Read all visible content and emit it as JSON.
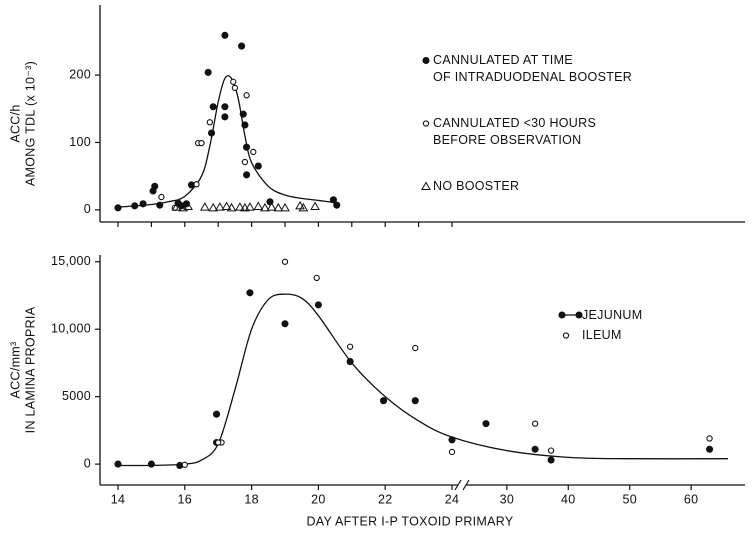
{
  "chart_data": [
    {
      "type": "scatter",
      "ylabel": [
        "ACC/h",
        "AMONG TDL (x 10⁻³)"
      ],
      "xlim": [
        14,
        24
      ],
      "xticks": [
        14,
        15,
        16,
        17,
        18,
        19,
        20,
        21,
        22,
        23,
        24
      ],
      "xtick_labels": false,
      "ylim": [
        -18,
        304
      ],
      "yticks": [
        0,
        100,
        200
      ],
      "series": [
        {
          "name": "CANNULATED AT TIME\nOF INTRADUODENAL BOOSTER",
          "color": "#111",
          "marker": "filled",
          "x": [
            14.0,
            14.5,
            14.75,
            15.05,
            15.1,
            15.25,
            15.8,
            15.9,
            16.05,
            16.2,
            16.7,
            16.8,
            16.85,
            17.2,
            17.2,
            17.2,
            17.7,
            17.75,
            17.8,
            17.85,
            17.85,
            18.2,
            18.55,
            20.45,
            20.55
          ],
          "values": [
            3,
            6,
            9,
            28,
            35,
            7,
            10,
            6,
            9,
            37,
            204,
            114,
            153,
            153,
            259,
            138,
            243,
            142,
            126,
            93,
            52,
            65,
            12,
            15,
            7
          ]
        },
        {
          "name": "CANNULATED <30 HOURS\nBEFORE OBSERVATION",
          "color": "#111",
          "marker": "hollow",
          "x": [
            15.3,
            15.7,
            16.35,
            16.4,
            16.5,
            16.75,
            17.45,
            17.5,
            17.8,
            17.85,
            18.05
          ],
          "values": [
            19,
            3,
            38,
            99,
            99,
            130,
            190,
            181,
            71,
            170,
            86
          ]
        },
        {
          "name": "NO BOOSTER",
          "color": "#111",
          "marker": "triangle",
          "x": [
            15.75,
            15.95,
            16.1,
            16.6,
            16.85,
            17.05,
            17.25,
            17.4,
            17.65,
            17.8,
            17.95,
            18.2,
            18.4,
            18.6,
            18.8,
            19.0,
            19.45,
            19.55,
            19.9
          ],
          "values": [
            4,
            3,
            5,
            4,
            3,
            4,
            5,
            3,
            4,
            3,
            4,
            5,
            3,
            4,
            3,
            3,
            6,
            3,
            5
          ]
        }
      ],
      "fit": {
        "x": [
          14,
          15,
          15.5,
          16,
          16.5,
          16.75,
          17,
          17.2,
          17.4,
          17.6,
          17.8,
          18,
          18.5,
          19,
          19.5,
          20,
          20.6
        ],
        "values": [
          4,
          8,
          12,
          20,
          50,
          95,
          160,
          195,
          195,
          165,
          110,
          70,
          35,
          22,
          17,
          14,
          10
        ]
      }
    },
    {
      "type": "scatter",
      "xlabel": "DAY AFTER I-P TOXOID PRIMARY",
      "ylabel": [
        "ACC/mm³",
        "IN LAMINA PROPRIA"
      ],
      "xlim": [
        14,
        66
      ],
      "xbreak": 24,
      "xticks": [
        14,
        16,
        18,
        20,
        22,
        24,
        30,
        40,
        50,
        60
      ],
      "ylim": [
        -1550,
        15500
      ],
      "yticks": [
        0,
        5000,
        {
          "value": 10000,
          "label": "10,000"
        },
        {
          "value": 15000,
          "label": "15,000"
        }
      ],
      "series": [
        {
          "name": "JEJUNUM",
          "color": "#111",
          "marker": "filled",
          "legend_line": true,
          "x": [
            14,
            15,
            15.85,
            16.95,
            16.95,
            17.95,
            19.0,
            20.0,
            20.95,
            21.95,
            22.9,
            24,
            26.6,
            34.6,
            37.2,
            63
          ],
          "values": [
            0,
            0,
            -100,
            3700,
            1600,
            12700,
            10400,
            11800,
            7600,
            4700,
            4700,
            1800,
            3000,
            1100,
            300,
            1100
          ]
        },
        {
          "name": "ILEUM",
          "color": "#111",
          "marker": "hollow",
          "x": [
            16.0,
            17.1,
            17.0,
            19.0,
            19.95,
            20.95,
            22.9,
            24,
            34.6,
            37.2,
            63
          ],
          "values": [
            -50,
            1600,
            1600,
            15000,
            13800,
            8700,
            8600,
            900,
            3000,
            1000,
            1900
          ]
        }
      ],
      "fit": {
        "x": [
          14,
          15,
          16,
          16.5,
          17,
          17.5,
          18,
          18.5,
          19,
          19.5,
          20,
          21,
          22,
          23,
          24,
          30,
          40,
          50,
          66
        ],
        "values": [
          -100,
          -100,
          0,
          300,
          1500,
          5500,
          10000,
          12200,
          12600,
          12300,
          11000,
          7500,
          5000,
          3200,
          2000,
          1000,
          500,
          400,
          400
        ]
      }
    }
  ]
}
